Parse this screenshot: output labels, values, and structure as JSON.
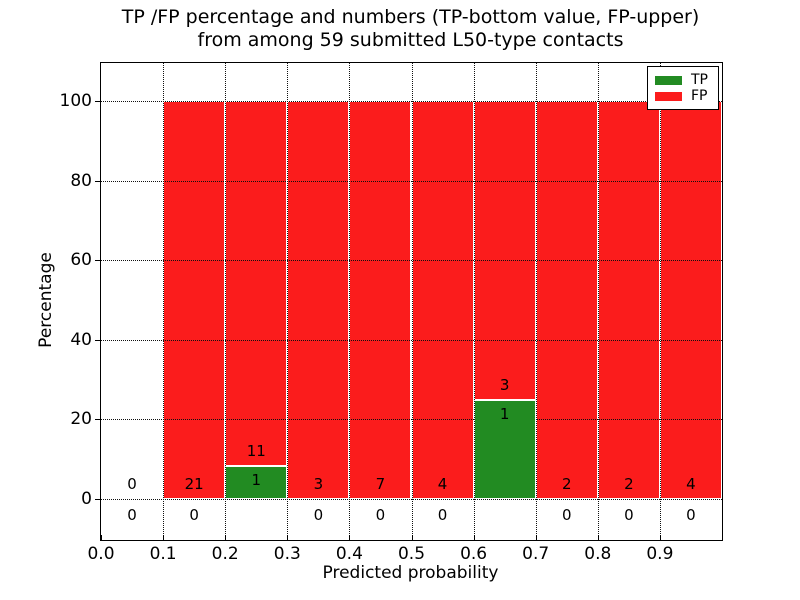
{
  "title": {
    "line1": "TP /FP percentage and numbers (TP-bottom value, FP-upper)",
    "line2": "from among 59 submitted L50-type contacts"
  },
  "axes": {
    "xlabel": "Predicted probability",
    "ylabel": "Percentage",
    "x_tick_labels": [
      "0.0",
      "0.1",
      "0.2",
      "0.3",
      "0.4",
      "0.5",
      "0.6",
      "0.7",
      "0.8",
      "0.9"
    ],
    "y_tick_labels": [
      "0",
      "20",
      "40",
      "60",
      "80",
      "100"
    ],
    "y_tick_values": [
      0,
      20,
      40,
      60,
      80,
      100
    ],
    "xlim": [
      0.0,
      1.0
    ],
    "ylim": [
      -10,
      110
    ],
    "grid_style": "dotted"
  },
  "legend": {
    "position": "upper-right",
    "items": [
      {
        "label": "TP",
        "color": "#228b22"
      },
      {
        "label": "FP",
        "color": "#fb1c1c"
      }
    ]
  },
  "chart_data": {
    "type": "bar",
    "stacked": true,
    "normalized_to_percent": true,
    "title": "TP /FP percentage and numbers (TP-bottom value, FP-upper) from among 59 submitted L50-type contacts",
    "xlabel": "Predicted probability",
    "ylabel": "Percentage",
    "bin_edges": [
      0.0,
      0.1,
      0.2,
      0.3,
      0.4,
      0.5,
      0.6,
      0.7,
      0.8,
      0.9,
      1.0
    ],
    "series": [
      {
        "name": "TP",
        "color": "#228b22",
        "counts": [
          0,
          0,
          1,
          0,
          0,
          0,
          1,
          0,
          0,
          0
        ],
        "percent": [
          0,
          0,
          8.3,
          0,
          0,
          0,
          25.0,
          0,
          0,
          0
        ]
      },
      {
        "name": "FP",
        "color": "#fb1c1c",
        "counts": [
          0,
          21,
          11,
          3,
          7,
          4,
          3,
          2,
          2,
          4
        ],
        "percent": [
          0,
          100,
          91.7,
          100,
          100,
          100,
          75.0,
          100,
          100,
          100
        ]
      }
    ],
    "total_contacts": 59,
    "annotation_scheme": "TP count shown at bottom of each bin, FP count shown above TP bar"
  }
}
